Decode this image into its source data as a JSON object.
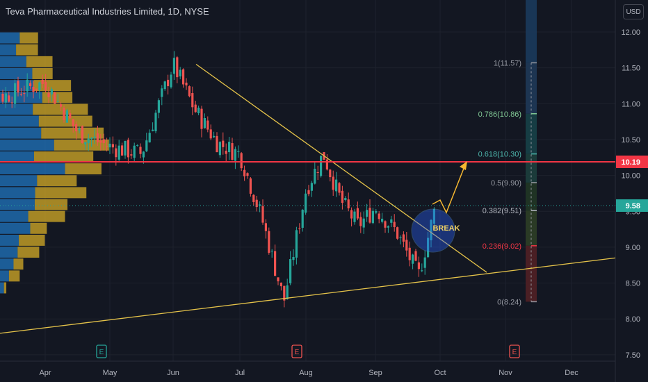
{
  "header": {
    "title": "Teva Pharmaceutical Industries Limited, 1D, NYSE",
    "currency_button": "USD"
  },
  "colors": {
    "background": "#131722",
    "up": "#26a69a",
    "down": "#ef5350",
    "trendline": "#e5c34a",
    "resistance": "#f23645",
    "volume_profile_up": "#1f6fb5",
    "volume_profile_down": "#c9a227"
  },
  "chart_data": {
    "type": "candlestick",
    "title": "Teva Pharmaceutical Industries Limited, 1D, NYSE",
    "currency": "USD",
    "x_tick_labels": [
      "Apr",
      "May",
      "Jun",
      "Jul",
      "Aug",
      "Sep",
      "Oct",
      "Nov",
      "Dec"
    ],
    "y_tick_labels": [
      "12.00",
      "11.50",
      "11.00",
      "10.50",
      "10.00",
      "9.50",
      "9.00",
      "8.50",
      "8.00",
      "7.50"
    ],
    "ylim": [
      7.45,
      12.2
    ],
    "price_path": [
      [
        "Mar",
        11.1
      ],
      [
        "Apr",
        11.3
      ],
      [
        "Apr",
        10.6
      ],
      [
        "May",
        10.4
      ],
      [
        "May",
        10.3
      ],
      [
        "Jun",
        11.55
      ],
      [
        "Jun",
        10.9
      ],
      [
        "Jun",
        10.45
      ],
      [
        "Jul",
        10.3
      ],
      [
        "Jul",
        9.4
      ],
      [
        "Jul",
        8.25
      ],
      [
        "Aug",
        9.8
      ],
      [
        "Aug",
        10.3
      ],
      [
        "Aug",
        9.65
      ],
      [
        "Aug",
        9.3
      ],
      [
        "Sep",
        9.55
      ],
      [
        "Sep",
        9.2
      ],
      [
        "Sep",
        8.6
      ],
      [
        "Oct",
        9.55
      ]
    ],
    "current_price": "9.58",
    "resistance_level": "10.19",
    "fibonacci_levels": [
      {
        "ratio": "1",
        "price": "11.57",
        "label": "1(11.57)",
        "color": "#9598a1"
      },
      {
        "ratio": "0.786",
        "price": "10.86",
        "label": "0.786(10.86)",
        "color": "#81c995"
      },
      {
        "ratio": "0.618",
        "price": "10.30",
        "label": "0.618(10.30)",
        "color": "#4db6ac"
      },
      {
        "ratio": "0.5",
        "price": "9.90",
        "label": "0.5(9.90)",
        "color": "#9598a1"
      },
      {
        "ratio": "0.382",
        "price": "9.51",
        "label": "0.382(9.51)",
        "color": "#b2b5be"
      },
      {
        "ratio": "0.236",
        "price": "9.02",
        "label": "0.236(9.02)",
        "color": "#f23645"
      },
      {
        "ratio": "0",
        "price": "8.24",
        "label": "0(8.24)",
        "color": "#9598a1"
      }
    ],
    "descending_trendline": {
      "from": [
        "Jun",
        11.55
      ],
      "to": [
        "Oct",
        8.65
      ]
    },
    "ascending_trendline": {
      "from": [
        "Mar",
        7.8
      ],
      "to": [
        "Dec",
        8.85
      ]
    },
    "annotations": [
      "BREAK"
    ],
    "event_markers": [
      {
        "label": "E",
        "near": "May",
        "color": "#26a69a"
      },
      {
        "label": "E",
        "near": "Aug",
        "color": "#ef5350"
      },
      {
        "label": "E",
        "near": "Nov",
        "color": "#ef5350"
      }
    ],
    "volume_profile": {
      "side": "left",
      "price_range": [
        8.35,
        12.0
      ],
      "rows": 22
    }
  }
}
